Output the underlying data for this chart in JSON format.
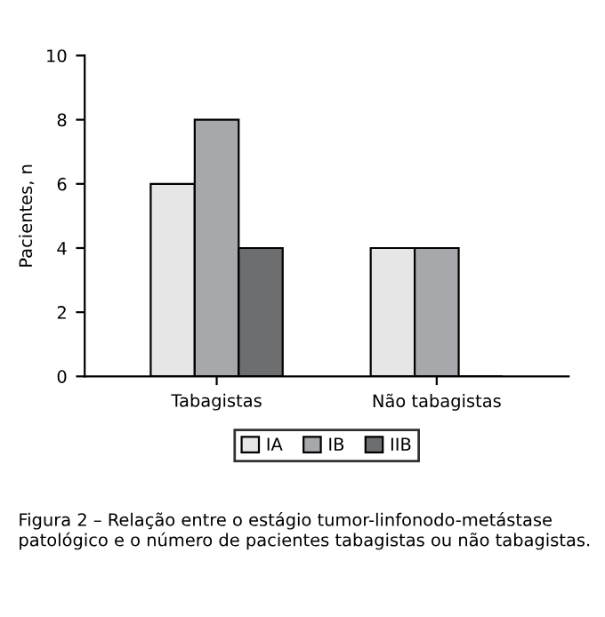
{
  "chart_data": {
    "type": "bar",
    "ylabel": "Pacientes, n",
    "categories": [
      "Tabagistas",
      "Não tabagistas"
    ],
    "series": [
      {
        "name": "IA",
        "color": "#e6e6e6",
        "values": [
          6,
          4
        ]
      },
      {
        "name": "IB",
        "color": "#a7a8ab",
        "values": [
          8,
          4
        ]
      },
      {
        "name": "IIB",
        "color": "#6d6e70",
        "values": [
          4,
          0
        ]
      }
    ],
    "ylim": [
      0,
      10
    ],
    "yticks": [
      0,
      2,
      4,
      6,
      8,
      10
    ],
    "grid": false,
    "legend": "bottom",
    "annotations": [
      "Figura 2 – Relação entre o estágio tumor-linfonodo-metástase patológico e o número de pacientes tabagistas ou não tabagistas."
    ]
  }
}
